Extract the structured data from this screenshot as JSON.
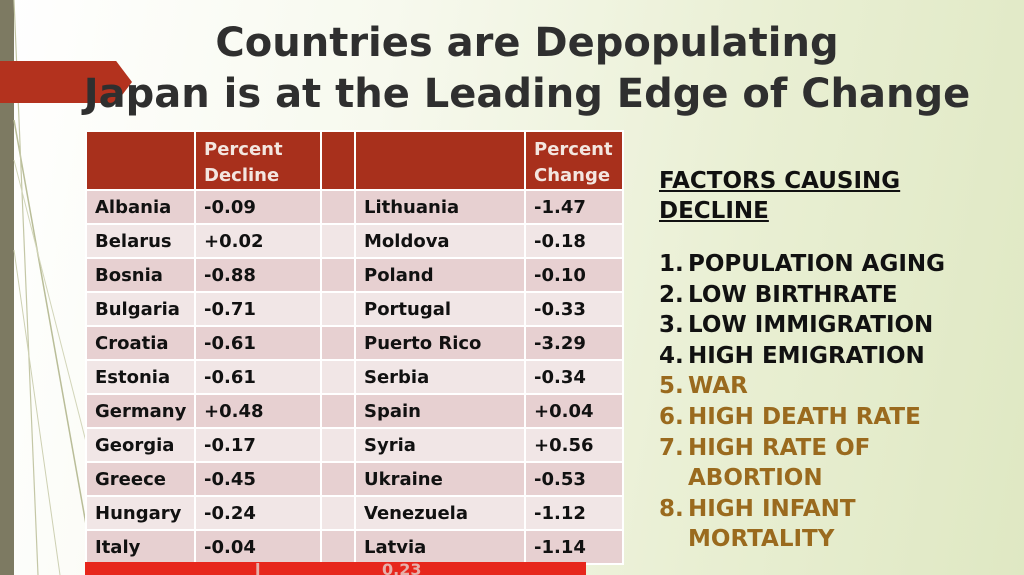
{
  "slide": {
    "title_line1": "Countries are Depopulating",
    "title_line2": "Japan is at the Leading Edge of Change"
  },
  "table": {
    "headers": [
      "",
      "Percent Decline",
      "",
      "",
      "Percent Change"
    ],
    "rows": [
      {
        "country_a": "Albania",
        "value_a": "-0.09",
        "country_b": "Lithuania",
        "value_b": "-1.47"
      },
      {
        "country_a": "Belarus",
        "value_a": "+0.02",
        "country_b": "Moldova",
        "value_b": "-0.18"
      },
      {
        "country_a": "Bosnia",
        "value_a": "-0.88",
        "country_b": "Poland",
        "value_b": "-0.10"
      },
      {
        "country_a": "Bulgaria",
        "value_a": "-0.71",
        "country_b": "Portugal",
        "value_b": "-0.33"
      },
      {
        "country_a": "Croatia",
        "value_a": "-0.61",
        "country_b": "Puerto Rico",
        "value_b": "-3.29"
      },
      {
        "country_a": "Estonia",
        "value_a": "-0.61",
        "country_b": "Serbia",
        "value_b": "-0.34"
      },
      {
        "country_a": "Germany",
        "value_a": "+0.48",
        "country_b": "Spain",
        "value_b": "+0.04"
      },
      {
        "country_a": "Georgia",
        "value_a": "-0.17",
        "country_b": "Syria",
        "value_b": "+0.56"
      },
      {
        "country_a": "Greece",
        "value_a": "-0.45",
        "country_b": "Ukraine",
        "value_b": "-0.53"
      },
      {
        "country_a": "Hungary",
        "value_a": "-0.24",
        "country_b": "Venezuela",
        "value_b": "-1.12"
      },
      {
        "country_a": "Italy",
        "value_a": "-0.04",
        "country_b": "Latvia",
        "value_b": "-1.14"
      }
    ],
    "total_row_partial": [
      "l",
      "0.23"
    ]
  },
  "factors": {
    "heading_line1": "FACTORS  CAUSING",
    "heading_line2": "DECLINE",
    "items": [
      {
        "num": "1.",
        "lines": [
          "POPULATION AGING"
        ],
        "color": "#111111"
      },
      {
        "num": "2.",
        "lines": [
          "LOW BIRTHRATE"
        ],
        "color": "#111111"
      },
      {
        "num": "3.",
        "lines": [
          "LOW IMMIGRATION"
        ],
        "color": "#111111"
      },
      {
        "num": "4.",
        "lines": [
          "HIGH EMIGRATION"
        ],
        "color": "#111111"
      },
      {
        "num": "5.",
        "lines": [
          "WAR"
        ],
        "color": "#9a6a1e"
      },
      {
        "num": "6.",
        "lines": [
          "HIGH DEATH RATE"
        ],
        "color": "#9a6a1e"
      },
      {
        "num": "7.",
        "lines": [
          "HIGH RATE OF",
          "ABORTION"
        ],
        "color": "#9a6a1e"
      },
      {
        "num": "8.",
        "lines": [
          "HIGH INFANT",
          "MORTALITY"
        ],
        "color": "#9a6a1e"
      }
    ]
  },
  "colors": {
    "header_red": "#a8301c",
    "accent_red": "#b3321e",
    "highlight_brown": "#9a6a1e",
    "total_red": "#e7261c"
  }
}
